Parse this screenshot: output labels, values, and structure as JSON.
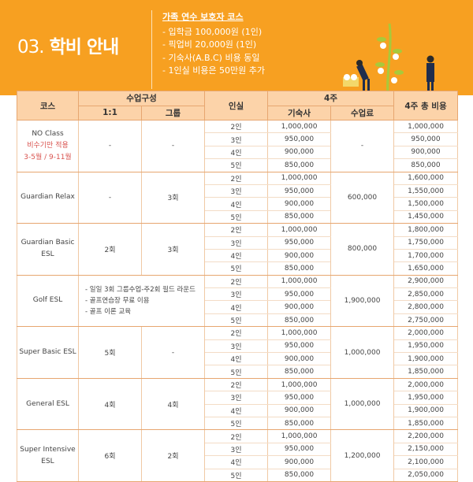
{
  "header": {
    "section_number": "03.",
    "section_title": "학비 안내",
    "info_title": "가족 연수 보호자 코스",
    "info_items": [
      "- 입학금 100,000원 (1인)",
      "- 픽업비 20,000원 (1인)",
      "- 기숙사(A.B.C) 비용 동일",
      "- 1인실 비용은 50만원 추가"
    ]
  },
  "colors": {
    "banner": "#f7a021",
    "table_header": "#fcd3a9",
    "note_red": "#d9534f"
  },
  "table": {
    "headers": {
      "course": "코스",
      "composition": "수업구성",
      "one_on_one": "1:1",
      "group": "그룹",
      "room": "인실",
      "four_weeks": "4주",
      "dorm": "기숙사",
      "tuition": "수업료",
      "total": "4주 총 비용"
    },
    "rooms": [
      "2인",
      "3인",
      "4인",
      "5인"
    ],
    "dorm_prices": [
      "1,000,000",
      "950,000",
      "900,000",
      "850,000"
    ],
    "courses": [
      {
        "name": "NO Class",
        "note_lines": [
          "비수기만 적용",
          "3-5월 / 9-11월"
        ],
        "one_on_one": "-",
        "group": "-",
        "tuition": "-",
        "totals": [
          "1,000,000",
          "950,000",
          "900,000",
          "850,000"
        ]
      },
      {
        "name": "Guardian Relax",
        "one_on_one": "-",
        "group": "3회",
        "tuition": "600,000",
        "totals": [
          "1,600,000",
          "1,550,000",
          "1,500,000",
          "1,450,000"
        ]
      },
      {
        "name": "Guardian Basic ESL",
        "one_on_one": "2회",
        "group": "3회",
        "tuition": "800,000",
        "totals": [
          "1,800,000",
          "1,750,000",
          "1,700,000",
          "1,650,000"
        ]
      },
      {
        "name": "Golf ESL",
        "composition_notes": [
          "- 일일 3회 그룹수업-주2회 필드 라운드",
          "- 골프연습장 무료 이용",
          "- 골프 이론 교육"
        ],
        "tuition": "1,900,000",
        "totals": [
          "2,900,000",
          "2,850,000",
          "2,800,000",
          "2,750,000"
        ]
      },
      {
        "name": "Super Basic ESL",
        "one_on_one": "5회",
        "group": "-",
        "tuition": "1,000,000",
        "totals": [
          "2,000,000",
          "1,950,000",
          "1,900,000",
          "1,850,000"
        ]
      },
      {
        "name": "General ESL",
        "one_on_one": "4회",
        "group": "4회",
        "tuition": "1,000,000",
        "totals": [
          "2,000,000",
          "1,950,000",
          "1,900,000",
          "1,850,000"
        ]
      },
      {
        "name": "Super Intensive ESL",
        "one_on_one": "6회",
        "group": "2회",
        "tuition": "1,200,000",
        "totals": [
          "2,200,000",
          "2,150,000",
          "2,100,000",
          "2,050,000"
        ]
      }
    ]
  }
}
